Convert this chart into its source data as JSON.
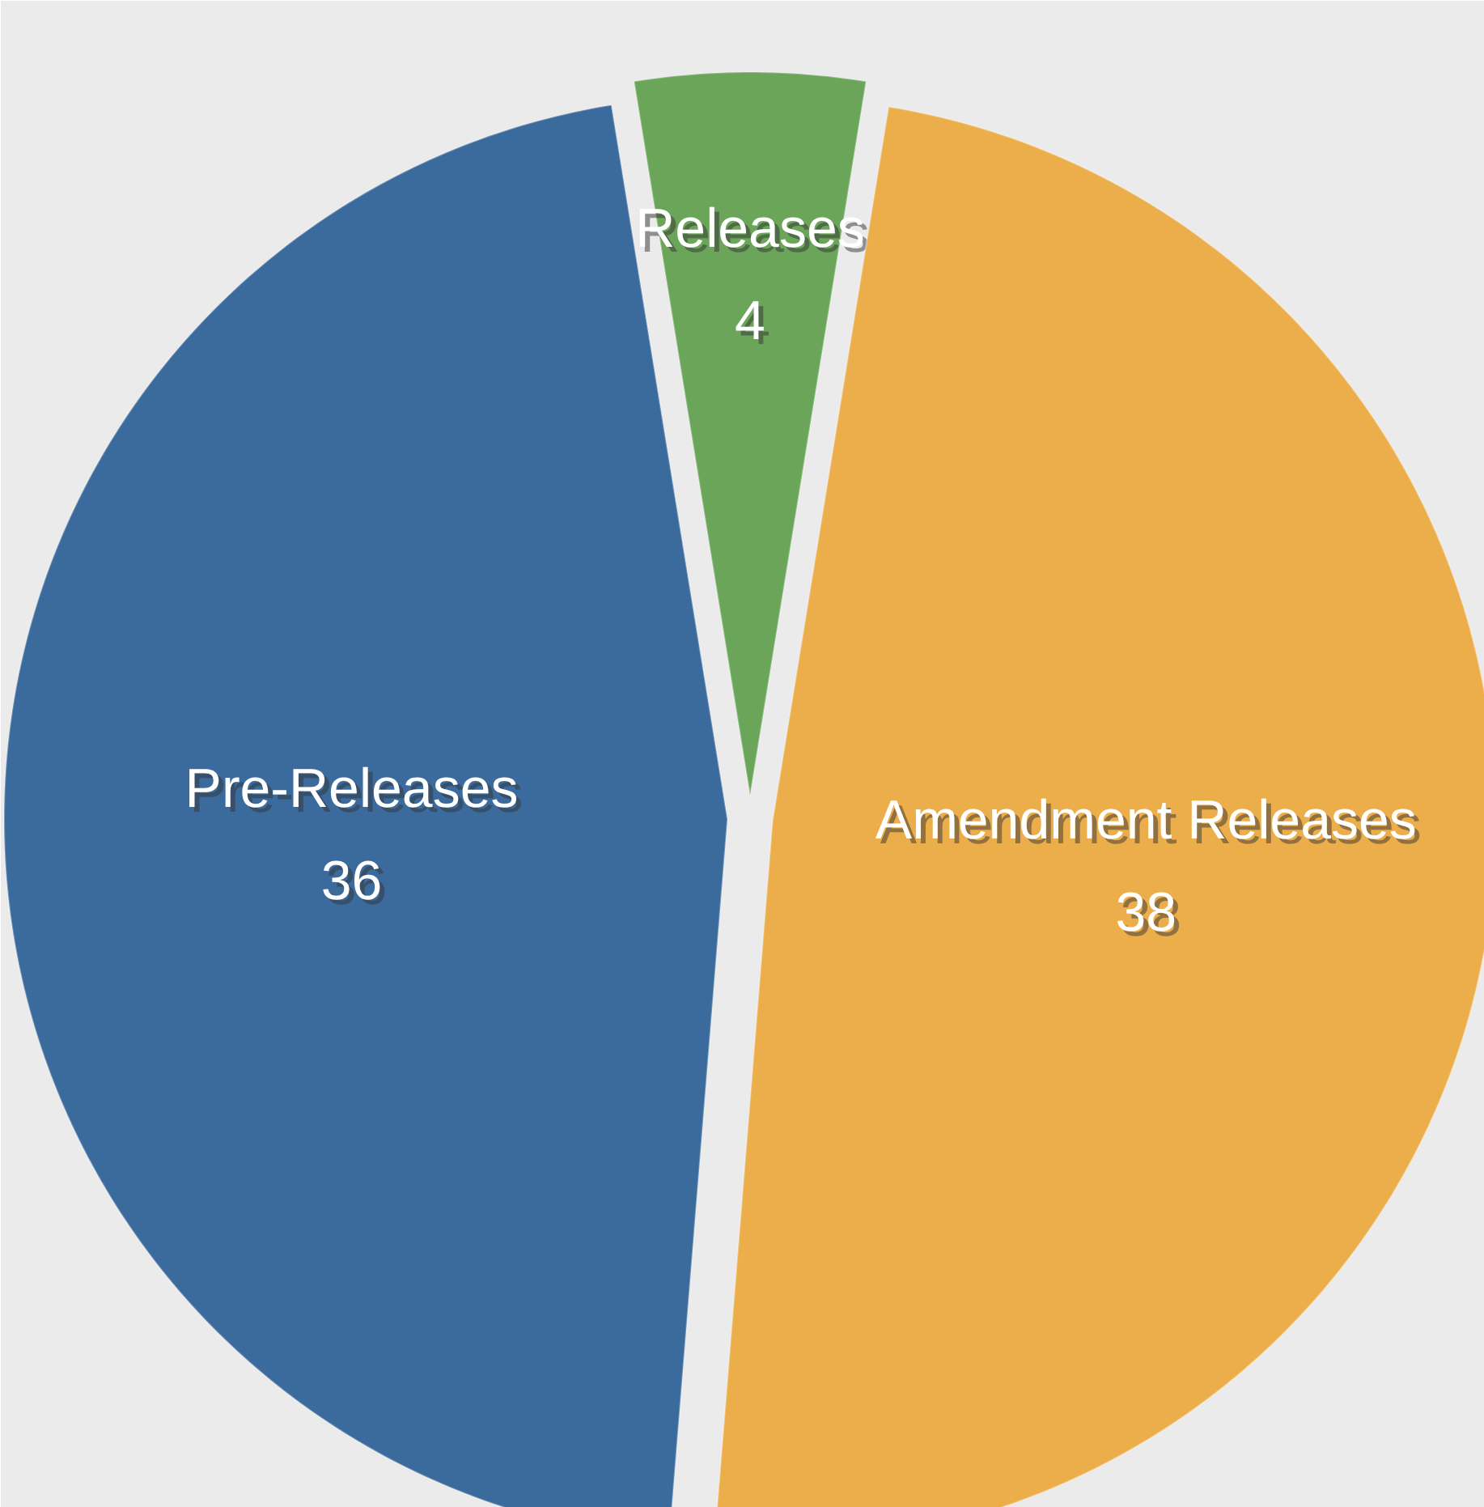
{
  "chart_data": {
    "type": "pie",
    "categories": [
      "Releases",
      "Amendment Releases",
      "Pre-Releases"
    ],
    "values": [
      4,
      38,
      36
    ],
    "colors": [
      "#6aa55a",
      "#ecae4a",
      "#3b6a9c"
    ],
    "data_labels": true,
    "legend": false
  }
}
